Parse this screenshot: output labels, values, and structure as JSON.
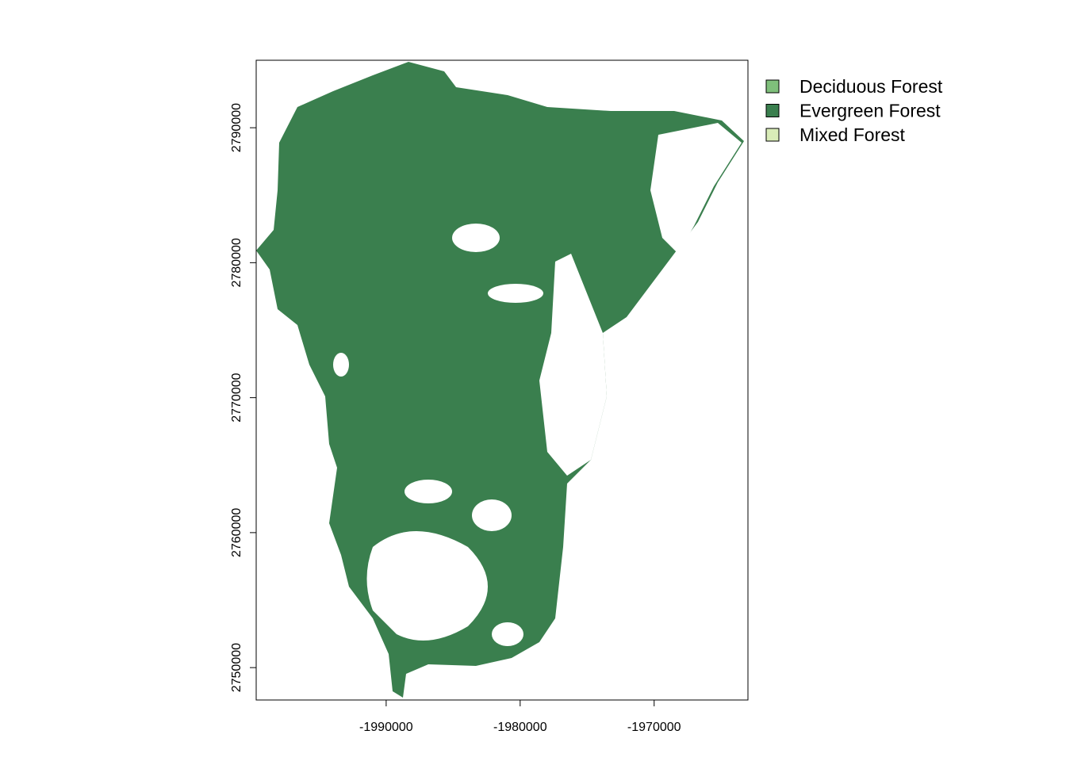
{
  "chart_data": {
    "type": "raster-map",
    "xlim": [
      -1999700,
      -1963000
    ],
    "ylim": [
      2747600,
      2795000
    ],
    "xticks": [
      -1990000,
      -1980000,
      -1970000
    ],
    "yticks": [
      2750000,
      2760000,
      2770000,
      2780000,
      2790000
    ],
    "legend_position": "top-right",
    "series": [
      {
        "name": "Deciduous Forest",
        "color": "#7fbf7b"
      },
      {
        "name": "Evergreen Forest",
        "color": "#3a7f4e"
      },
      {
        "name": "Mixed Forest",
        "color": "#d9ecb8"
      }
    ]
  }
}
